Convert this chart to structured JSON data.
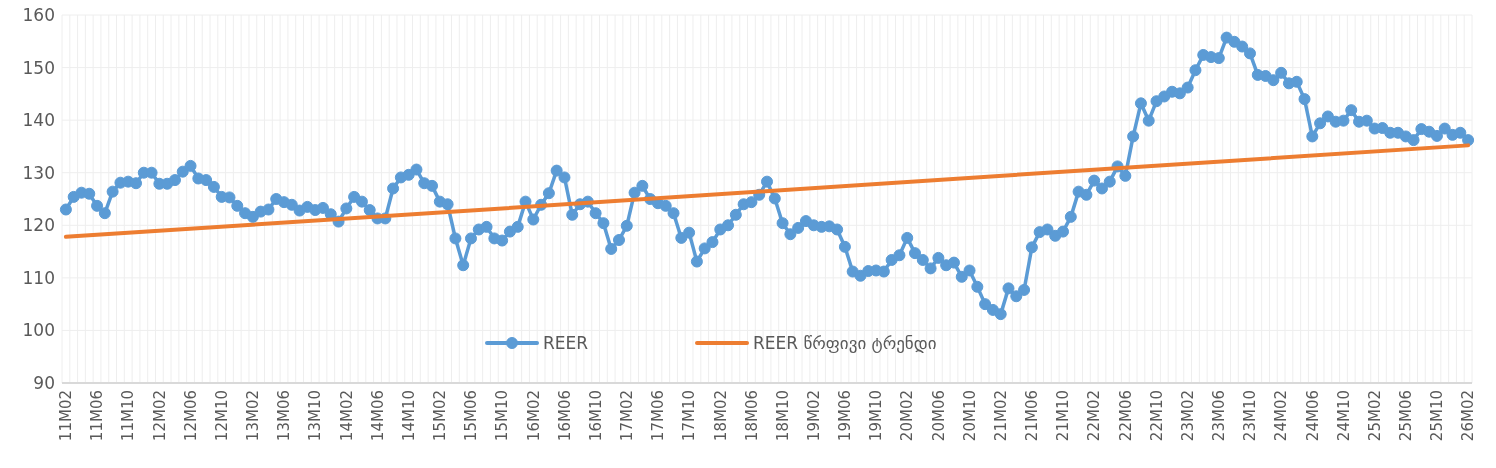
{
  "chart_data": {
    "type": "line",
    "categories": [
      "11M02",
      null,
      null,
      null,
      "11M06",
      null,
      null,
      null,
      "11M10",
      null,
      null,
      null,
      "12M02",
      null,
      null,
      null,
      "12M06",
      null,
      null,
      null,
      "12M10",
      null,
      null,
      null,
      "13M02",
      null,
      null,
      null,
      "13M06",
      null,
      null,
      null,
      "13M10",
      null,
      null,
      null,
      "14M02",
      null,
      null,
      null,
      "14M06",
      null,
      null,
      null,
      "14M10",
      null,
      null,
      null,
      "15M02",
      null,
      null,
      null,
      "15M06",
      null,
      null,
      null,
      "15M10",
      null,
      null,
      null,
      "16M02",
      null,
      null,
      null,
      "16M06",
      null,
      null,
      null,
      "16M10",
      null,
      null,
      null,
      "17M02",
      null,
      null,
      null,
      "17M06",
      null,
      null,
      null,
      "17M10",
      null,
      null,
      null,
      "18M02",
      null,
      null,
      null,
      "18M06",
      null,
      null,
      null,
      "18M10",
      null,
      null,
      null,
      "19M02",
      null,
      null,
      null,
      "19M06",
      null,
      null,
      null,
      "19M10",
      null,
      null,
      null,
      "20M02",
      null,
      null,
      null,
      "20M06",
      null,
      null,
      null,
      "20M10",
      null,
      null,
      null,
      "21M02",
      null,
      null,
      null,
      "21M06",
      null,
      null,
      null,
      "21M10",
      null,
      null,
      null,
      "22M02",
      null,
      null,
      null,
      "22M06",
      null,
      null,
      null,
      "22M10",
      null,
      null,
      null,
      "23M02",
      null,
      null,
      null,
      "23M06",
      null,
      null,
      null,
      "23M10",
      null,
      null,
      null,
      "24M02",
      null,
      null,
      null,
      "24M06",
      null,
      null,
      null,
      "24M10",
      null,
      null,
      null,
      "25M02",
      null,
      null,
      null,
      "25M06",
      null,
      null,
      null,
      "25M10",
      null,
      null,
      null,
      "26M02"
    ],
    "series": [
      {
        "name": "REER",
        "marker": "circle",
        "color": "#5b9bd5",
        "values": [
          123,
          125.4,
          126.2,
          126,
          123.7,
          122.3,
          126.4,
          128.1,
          128.3,
          128,
          130,
          130,
          127.9,
          127.9,
          128.6,
          130.2,
          131.3,
          128.9,
          128.6,
          127.3,
          125.4,
          125.3,
          123.7,
          122.3,
          121.6,
          122.6,
          123,
          125,
          124.4,
          123.9,
          122.8,
          123.5,
          122.9,
          123.3,
          122.1,
          120.7,
          123.2,
          125.4,
          124.5,
          122.9,
          121.3,
          121.3,
          127,
          129.1,
          129.6,
          130.6,
          128,
          127.5,
          124.5,
          124,
          117.5,
          112.4,
          117.5,
          119.2,
          119.7,
          117.5,
          117.1,
          118.8,
          119.7,
          124.5,
          121.1,
          123.9,
          126.1,
          130.4,
          129.1,
          122,
          124,
          124.5,
          122.3,
          120.4,
          115.5,
          117.2,
          119.9,
          126.2,
          127.5,
          125,
          124.2,
          123.7,
          122.3,
          117.6,
          118.6,
          113.1,
          115.6,
          116.8,
          119.2,
          120,
          122,
          124,
          124.4,
          125.8,
          128.3,
          125.1,
          120.4,
          118.3,
          119.5,
          120.8,
          120,
          119.7,
          119.8,
          119.2,
          115.9,
          111.2,
          110.4,
          111.3,
          111.4,
          111.2,
          113.4,
          114.3,
          117.6,
          114.7,
          113.4,
          111.8,
          113.8,
          112.4,
          112.9,
          110.2,
          111.4,
          108.3,
          105,
          103.9,
          103.1,
          108,
          106.5,
          107.7,
          115.8,
          118.7,
          119.2,
          118,
          118.8,
          121.6,
          126.4,
          125.8,
          128.5,
          127,
          128.3,
          131.2,
          129.4,
          136.9,
          143.2,
          139.9,
          143.6,
          144.5,
          145.4,
          145.1,
          146.2,
          149.5,
          152.4,
          152,
          151.8,
          155.7,
          154.9,
          154,
          152.7,
          148.6,
          148.4,
          147.6,
          149,
          147,
          147.3,
          144,
          136.9,
          139.4,
          140.7,
          139.7,
          139.9,
          141.9,
          139.7,
          139.9,
          138.4,
          138.5,
          137.6,
          137.6,
          136.9,
          136.2,
          138.3,
          137.8,
          137,
          138.4,
          137.2,
          137.6,
          136.2
        ]
      },
      {
        "name": "REER წრფივი ტრენდი",
        "marker": "none",
        "color": "#ed7d31",
        "x": [
          "11M02",
          "26M02"
        ],
        "values": [
          117.8,
          135.2
        ]
      }
    ],
    "ylim": [
      90,
      160
    ],
    "yticks": [
      90,
      100,
      110,
      120,
      130,
      140,
      150,
      160
    ],
    "grid": true,
    "legend": "bottom"
  }
}
